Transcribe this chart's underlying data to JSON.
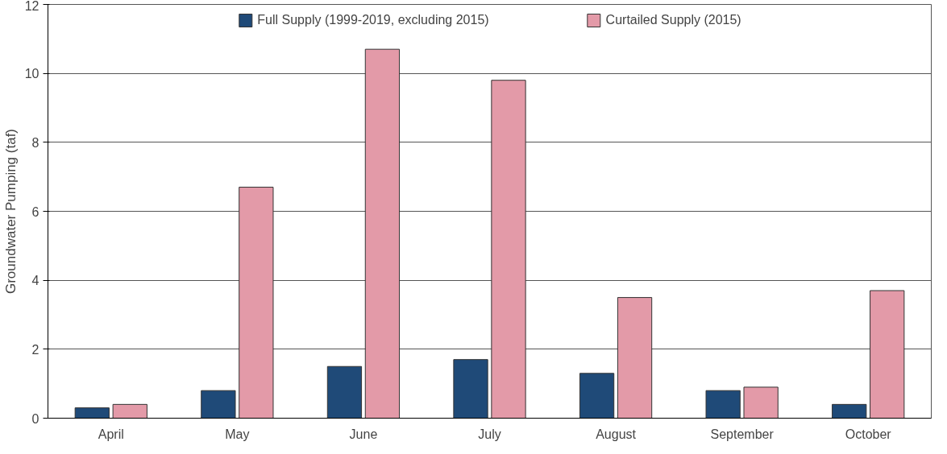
{
  "chart_data": {
    "type": "bar",
    "ylabel": "Groundwater Pumping (taf)",
    "categories": [
      "April",
      "May",
      "June",
      "July",
      "August",
      "September",
      "October"
    ],
    "series": [
      {
        "name": "Full Supply (1999-2019, excluding 2015)",
        "color": "#1f4a78",
        "values": [
          0.3,
          0.8,
          1.5,
          1.7,
          1.3,
          0.8,
          0.4
        ]
      },
      {
        "name": "Curtailed Supply (2015)",
        "color": "#e39aa8",
        "values": [
          0.4,
          6.7,
          10.7,
          9.8,
          3.5,
          0.9,
          3.7
        ]
      }
    ],
    "ylim": [
      0,
      12
    ],
    "yticks": [
      0,
      2,
      4,
      6,
      8,
      10,
      12
    ],
    "grid": "y",
    "legend": "top"
  }
}
